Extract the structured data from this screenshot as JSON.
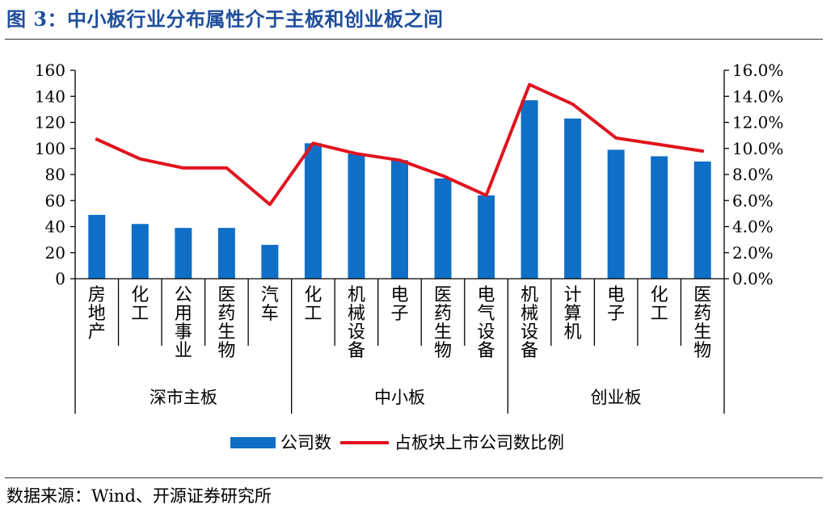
{
  "title": "图 3：中小板行业分布属性介于主板和创业板之间",
  "source": "数据来源：Wind、开源证券研究所",
  "colors": {
    "bar": "#0f6fc6",
    "line": "#e0141e",
    "title": "#1f4e9c",
    "axis": "#000000"
  },
  "chart_data": {
    "type": "bar",
    "categories": [
      "房地产",
      "化工",
      "公用事业",
      "医药生物",
      "汽车",
      "化工",
      "机械设备",
      "电子",
      "医药生物",
      "电气设备",
      "机械设备",
      "计算机",
      "电子",
      "化工",
      "医药生物"
    ],
    "groups": [
      {
        "label": "深市主板",
        "start": 0,
        "end": 4
      },
      {
        "label": "中小板",
        "start": 5,
        "end": 9
      },
      {
        "label": "创业板",
        "start": 10,
        "end": 14
      }
    ],
    "series": [
      {
        "name": "公司数",
        "type": "bar",
        "axis": "left",
        "values": [
          49,
          42,
          39,
          39,
          26,
          104,
          96,
          91,
          77,
          64,
          137,
          123,
          99,
          94,
          90
        ]
      },
      {
        "name": "占板块上市公司数比例",
        "type": "line",
        "axis": "right",
        "values": [
          10.7,
          9.2,
          8.5,
          8.5,
          5.7,
          10.4,
          9.6,
          9.1,
          7.9,
          6.4,
          14.9,
          13.4,
          10.8,
          10.3,
          9.8
        ]
      }
    ],
    "yleft": {
      "min": 0,
      "max": 160,
      "step": 20,
      "ticks": [
        "0",
        "20",
        "40",
        "60",
        "80",
        "100",
        "120",
        "140",
        "160"
      ]
    },
    "yright": {
      "min": 0,
      "max": 16,
      "step": 2,
      "ticks": [
        "0.0%",
        "2.0%",
        "4.0%",
        "6.0%",
        "8.0%",
        "10.0%",
        "12.0%",
        "14.0%",
        "16.0%"
      ]
    },
    "legend_position": "bottom",
    "grid": false
  }
}
